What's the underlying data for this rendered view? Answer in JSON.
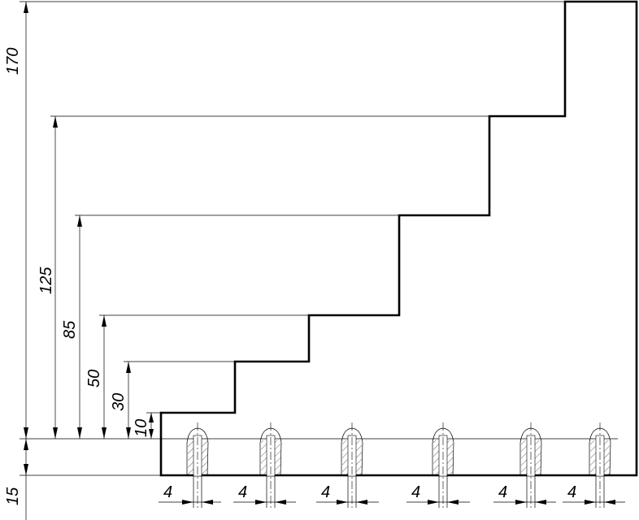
{
  "dimensions": {
    "base": "15",
    "step1": "10",
    "step2": "30",
    "step3": "50",
    "step4": "85",
    "step5": "125",
    "total": "170"
  },
  "widths": [
    "4",
    "4",
    "4",
    "4",
    "4",
    "4"
  ]
}
